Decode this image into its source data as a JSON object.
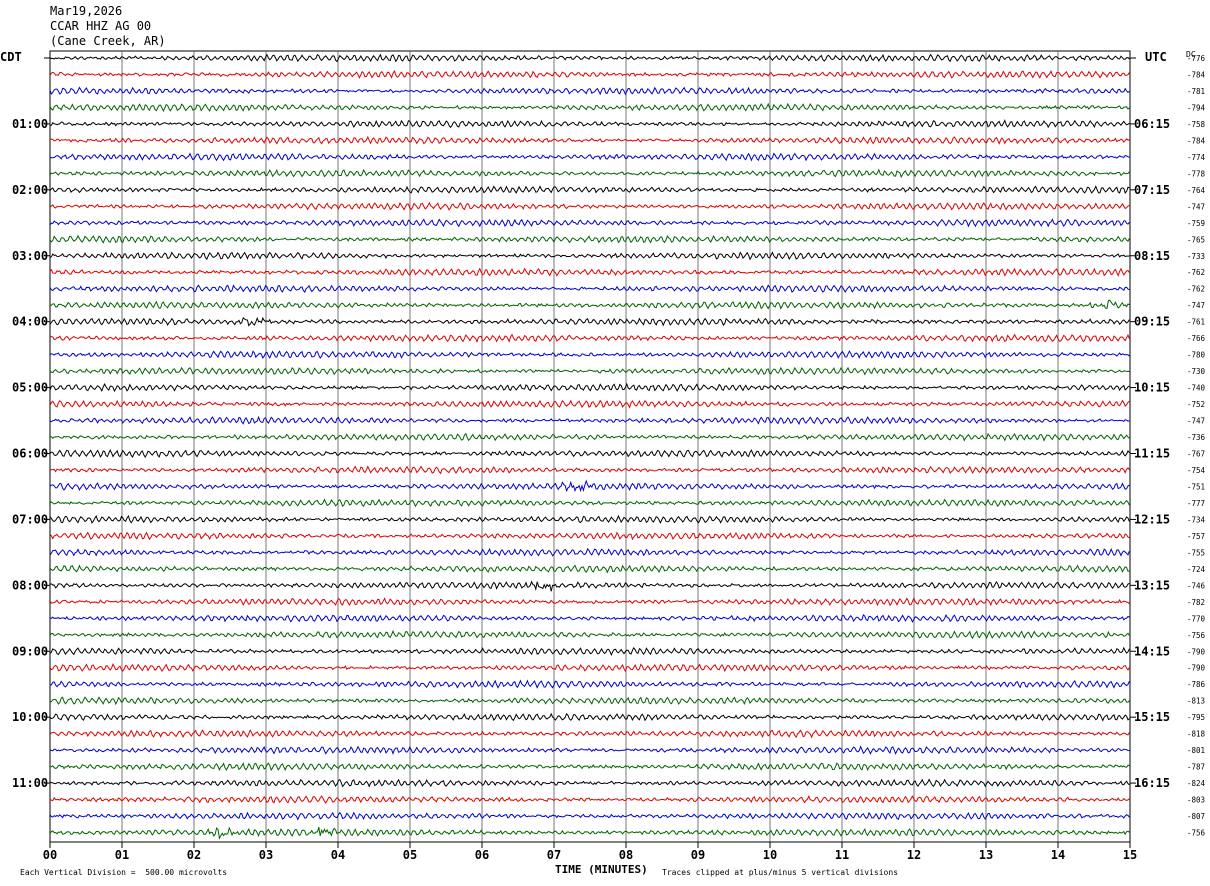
{
  "header": {
    "date": "Mar19,2026",
    "station": "CCAR HHZ AG 00",
    "location": "(Cane Creek, AR)"
  },
  "left_timezone": "CDT",
  "right_timezone": "UTC",
  "dc_label": "DC",
  "footer": {
    "scale_note": "Each Vertical Division =  500.00 microvolts",
    "x_axis_title": "TIME (MINUTES)",
    "clip_note": "Traces clipped at plus/minus 5 vertical divisions"
  },
  "colors": {
    "trace_cycle": [
      "#000000",
      "#dd0000",
      "#0000cc",
      "#006400"
    ],
    "grid": "#000000"
  },
  "chart_data": {
    "type": "line",
    "title": "",
    "xlabel": "TIME (MINUTES)",
    "xlim": [
      0,
      15
    ],
    "x_ticks": [
      "00",
      "01",
      "02",
      "03",
      "04",
      "05",
      "06",
      "07",
      "08",
      "09",
      "10",
      "11",
      "12",
      "13",
      "14",
      "15"
    ],
    "left_hour_labels": [
      "01:00",
      "02:00",
      "03:00",
      "04:00",
      "05:00",
      "06:00",
      "07:00",
      "08:00",
      "09:00",
      "10:00",
      "11:00"
    ],
    "right_hour_labels": [
      "06:15",
      "07:15",
      "08:15",
      "09:15",
      "10:15",
      "11:15",
      "12:15",
      "13:15",
      "14:15",
      "15:15",
      "16:15"
    ],
    "trace_count": 48,
    "dc_offsets": [
      -776,
      -784,
      -781,
      -794,
      -758,
      -784,
      -774,
      -778,
      -764,
      -747,
      -759,
      -765,
      -733,
      -762,
      -762,
      -747,
      -761,
      -766,
      -780,
      -730,
      -740,
      -752,
      -747,
      -736,
      -767,
      -754,
      -751,
      -777,
      -734,
      -757,
      -755,
      -724,
      -746,
      -782,
      -770,
      -756,
      -790,
      -790,
      -786,
      -813,
      -795,
      -818,
      -801,
      -787,
      -824,
      -803,
      -807,
      -756
    ],
    "events": [
      {
        "trace": 15,
        "minute": 14.7
      },
      {
        "trace": 16,
        "minute": 2.8
      },
      {
        "trace": 26,
        "minute": 7.35
      },
      {
        "trace": 32,
        "minute": 6.85
      },
      {
        "trace": 47,
        "minute": 2.4
      },
      {
        "trace": 47,
        "minute": 3.8
      }
    ]
  }
}
